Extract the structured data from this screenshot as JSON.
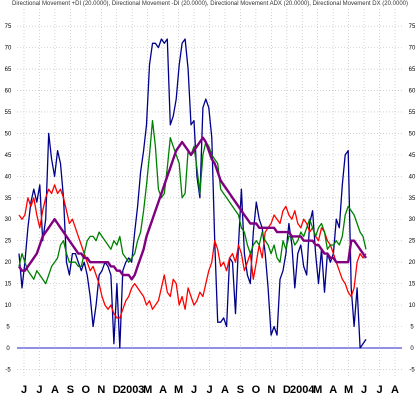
{
  "chart_data": {
    "type": "line",
    "title": "Directional Movement +DI (20.0000), Directional Movement -DI (20.0000), Directional Movement ADX (20.0000), Directional Movement DX (20.0000)",
    "xlabel": "",
    "ylabel": "",
    "ylim": [
      -7,
      79
    ],
    "y_ticks": [
      -5,
      0,
      5,
      10,
      15,
      20,
      25,
      30,
      35,
      40,
      45,
      50,
      55,
      60,
      65,
      70,
      75
    ],
    "y_tick_labels": [
      "-5",
      "0",
      "5",
      "10",
      "15",
      "20",
      "25",
      "30",
      "35",
      "40",
      "45",
      "50",
      "55",
      "60",
      "65",
      "70",
      "75"
    ],
    "x_tick_labels": [
      "J",
      "J",
      "A",
      "S",
      "O",
      "N",
      "D",
      "2003",
      "M",
      "A",
      "M",
      "J",
      "J",
      "A",
      "S",
      "O",
      "N",
      "D",
      "2004",
      "M",
      "A",
      "M",
      "J",
      "J",
      "A"
    ],
    "grid": true,
    "legend": "none",
    "zero_line_color": "#2222cc",
    "series": [
      {
        "color": "#00008b",
        "values": [
          22,
          14,
          20,
          28,
          34,
          37,
          34,
          38,
          25,
          30,
          50,
          44,
          40,
          46,
          43,
          35,
          20,
          17,
          22,
          22,
          20,
          18,
          20,
          17,
          12,
          5,
          10,
          17,
          18,
          20,
          19,
          17,
          1,
          15,
          0,
          18,
          20,
          21,
          20,
          27,
          33,
          41,
          46,
          52,
          66,
          71,
          71,
          70,
          72,
          71,
          72,
          52,
          54,
          58,
          66,
          71,
          72,
          65,
          52,
          53,
          40,
          35,
          56,
          58,
          56,
          49,
          25,
          6,
          6,
          7,
          5,
          21,
          20,
          8,
          24,
          37,
          22,
          17,
          15,
          27,
          34,
          30,
          28,
          22,
          14,
          3,
          5,
          3,
          16,
          18,
          22,
          29,
          24,
          14,
          22,
          24,
          19,
          17,
          29,
          32,
          22,
          15,
          23,
          13,
          22,
          20,
          22,
          30,
          28,
          38,
          45,
          46,
          14,
          5,
          14,
          0,
          1,
          2
        ]
      },
      {
        "color": "#ff0000",
        "values": [
          31,
          30,
          31,
          35,
          33,
          35,
          31,
          28,
          32,
          35,
          37,
          36,
          38,
          36,
          37,
          35,
          32,
          29,
          30,
          28,
          26,
          24,
          22,
          20,
          18,
          19,
          17,
          15,
          12,
          10,
          9,
          10,
          8,
          7,
          7,
          9,
          11,
          12,
          14,
          15,
          14,
          13,
          12,
          10,
          11,
          9,
          10,
          11,
          14,
          17,
          13,
          12,
          16,
          15,
          10,
          12,
          9,
          14,
          12,
          10,
          11,
          13,
          12,
          15,
          18,
          20,
          25,
          23,
          19,
          20,
          18,
          21,
          22,
          20,
          24,
          22,
          18,
          20,
          22,
          16,
          20,
          24,
          21,
          27,
          28,
          29,
          31,
          30,
          29,
          32,
          33,
          31,
          30,
          32,
          29,
          28,
          30,
          29,
          27,
          28,
          26,
          25,
          28,
          27,
          25,
          24,
          22,
          20,
          18,
          16,
          15,
          13,
          12,
          14,
          20,
          22,
          21,
          22
        ]
      },
      {
        "color": "#008000",
        "values": [
          19,
          22,
          20,
          18,
          17,
          16,
          18,
          17,
          16,
          15,
          17,
          19,
          20,
          21,
          24,
          25,
          22,
          20,
          20,
          20,
          19,
          19,
          22,
          25,
          26,
          26,
          25,
          27,
          26,
          25,
          24,
          23,
          25,
          24,
          26,
          22,
          21,
          20,
          21,
          22,
          25,
          27,
          32,
          38,
          45,
          53,
          47,
          37,
          35,
          36,
          42,
          49,
          47,
          45,
          43,
          35,
          36,
          46,
          45,
          47,
          42,
          36,
          45,
          48,
          47,
          45,
          44,
          43,
          37,
          36,
          35,
          34,
          33,
          32,
          31,
          28,
          27,
          24,
          22,
          24,
          25,
          24,
          27,
          25,
          24,
          22,
          24,
          21,
          20,
          25,
          23,
          26,
          26,
          24,
          25,
          27,
          26,
          28,
          30,
          28,
          26,
          28,
          29,
          27,
          23,
          24,
          24,
          25,
          24,
          26,
          31,
          33,
          32,
          31,
          29,
          27,
          26,
          23
        ]
      },
      {
        "color": "#800080",
        "values": [
          19,
          18,
          18,
          19,
          20,
          21,
          22,
          24,
          26,
          27,
          28,
          29,
          30,
          29,
          28,
          27,
          26,
          25,
          24,
          23,
          22,
          22,
          21,
          21,
          20,
          20,
          20,
          20,
          20,
          20,
          20,
          19,
          19,
          18,
          18,
          17,
          17,
          17,
          16,
          17,
          19,
          21,
          23,
          26,
          28,
          30,
          32,
          34,
          36,
          38,
          40,
          42,
          44,
          46,
          47,
          48,
          47,
          46,
          45,
          46,
          47,
          48,
          49,
          48,
          46,
          44,
          43,
          41,
          39,
          38,
          37,
          36,
          35,
          34,
          33,
          32,
          31,
          30,
          29,
          29,
          29,
          28,
          28,
          28,
          28,
          28,
          28,
          27,
          27,
          27,
          27,
          27,
          26,
          26,
          26,
          26,
          25,
          25,
          25,
          25,
          24,
          24,
          23,
          22,
          22,
          21,
          21,
          20,
          20,
          20,
          20,
          20,
          25,
          25,
          24,
          23,
          22,
          21
        ]
      }
    ]
  }
}
